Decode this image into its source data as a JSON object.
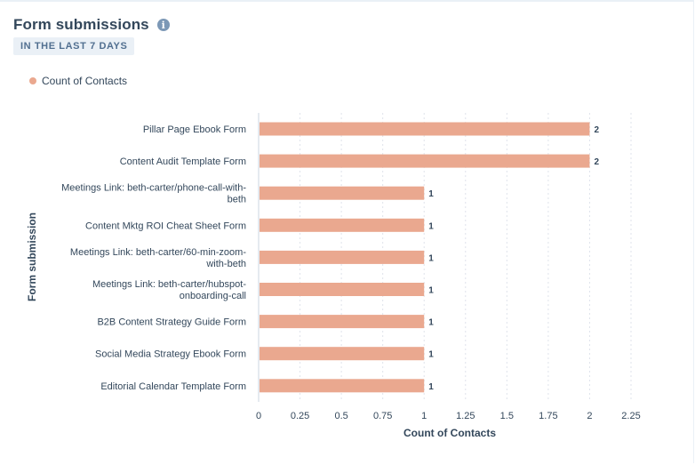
{
  "widget": {
    "title": "Form submissions",
    "info_icon": "info-icon",
    "date_range": "IN THE LAST 7 DAYS"
  },
  "chart_data": {
    "type": "bar",
    "orientation": "horizontal",
    "categories": [
      "Pillar Page Ebook Form",
      "Content Audit Template Form",
      "Meetings Link: beth-carter/phone-call-with-beth",
      "Content Mktg ROI Cheat Sheet Form",
      "Meetings Link: beth-carter/60-min-zoom-with-beth",
      "Meetings Link: beth-carter/hubspot-onboarding-call",
      "B2B Content Strategy Guide Form",
      "Social Media Strategy Ebook Form",
      "Editorial Calendar Template Form"
    ],
    "category_label_lines": [
      [
        "Pillar Page Ebook Form"
      ],
      [
        "Content Audit Template Form"
      ],
      [
        "Meetings Link: beth-carter/phone-call-with-",
        "beth"
      ],
      [
        "Content Mktg ROI Cheat Sheet Form"
      ],
      [
        "Meetings Link: beth-carter/60-min-zoom-",
        "with-beth"
      ],
      [
        "Meetings Link: beth-carter/hubspot-",
        "onboarding-call"
      ],
      [
        "B2B Content Strategy Guide Form"
      ],
      [
        "Social Media Strategy Ebook Form"
      ],
      [
        "Editorial Calendar Template Form"
      ]
    ],
    "series": [
      {
        "name": "Count of Contacts",
        "values": [
          2,
          2,
          1,
          1,
          1,
          1,
          1,
          1,
          1
        ],
        "color": "#eaa88f"
      }
    ],
    "x_ticks": [
      "0",
      "0.25",
      "0.5",
      "0.75",
      "1",
      "1.25",
      "1.5",
      "1.75",
      "2",
      "2.25"
    ],
    "xlim": [
      0,
      2.25
    ],
    "xlabel": "Count of Contacts",
    "ylabel": "Form submission",
    "legend_position": "top-left",
    "grid": "vertical-dashed"
  }
}
